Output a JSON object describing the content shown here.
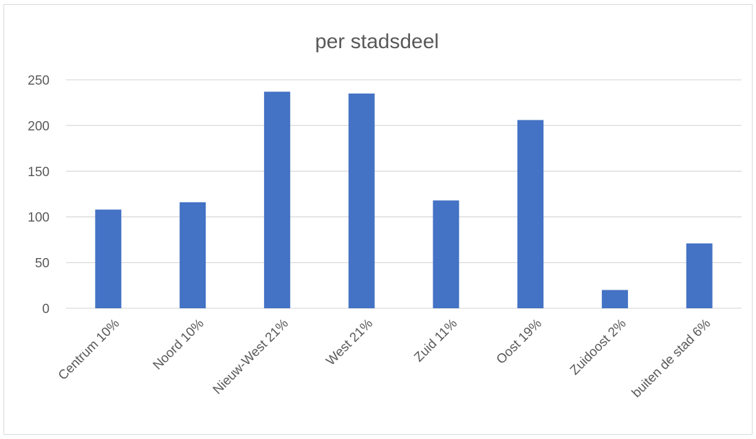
{
  "chart_data": {
    "type": "bar",
    "title": "per stadsdeel",
    "categories": [
      "Centrum 10%",
      "Noord 10%",
      "Nieuw-West 21%",
      "West 21%",
      "Zuid 11%",
      "Oost 19%",
      "Zuidoost 2%",
      "buiten de stad 6%"
    ],
    "values": [
      108,
      116,
      237,
      235,
      118,
      206,
      20,
      71
    ],
    "ylim": [
      0,
      250
    ],
    "yticks": [
      0,
      50,
      100,
      150,
      200,
      250
    ],
    "grid": true,
    "legend": "none",
    "bar_color": "#4472c4",
    "grid_color": "#d9d9d9",
    "text_color": "#595959"
  }
}
